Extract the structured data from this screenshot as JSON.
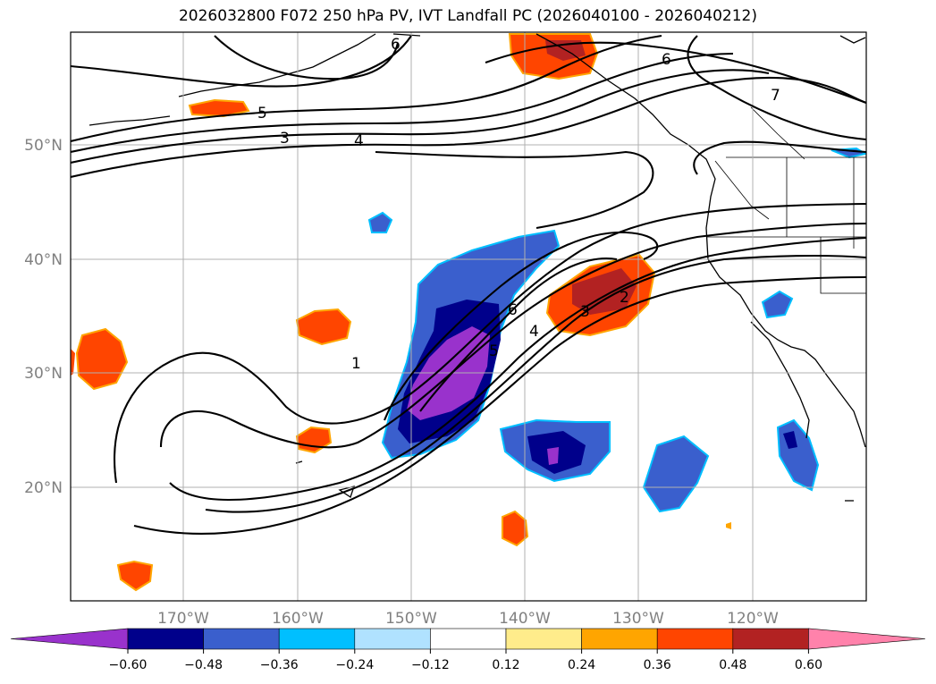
{
  "title": "2026032800 F072 250 hPa PV, IVT Landfall PC (2026040100 - 2026040212)",
  "map": {
    "lon_ticks": [
      "170°W",
      "160°W",
      "150°W",
      "140°W",
      "130°W",
      "120°W"
    ],
    "lat_ticks": [
      "50°N",
      "40°N",
      "30°N",
      "20°N"
    ],
    "contour_labels": [
      "1",
      "2",
      "3",
      "4",
      "5",
      "6",
      "7",
      "3",
      "4",
      "5",
      "6",
      "6"
    ]
  },
  "colorbar": {
    "ticks": [
      "−0.60",
      "−0.48",
      "−0.36",
      "−0.24",
      "−0.12",
      "0.12",
      "0.24",
      "0.36",
      "0.48",
      "0.60"
    ],
    "colors": [
      "#9932cc",
      "#00008b",
      "#3a5fcd",
      "#00bfff",
      "#b0e2ff",
      "#ffffff",
      "#ffec8b",
      "#ffa500",
      "#ff4500",
      "#b22222",
      "#ff82ab"
    ]
  }
}
